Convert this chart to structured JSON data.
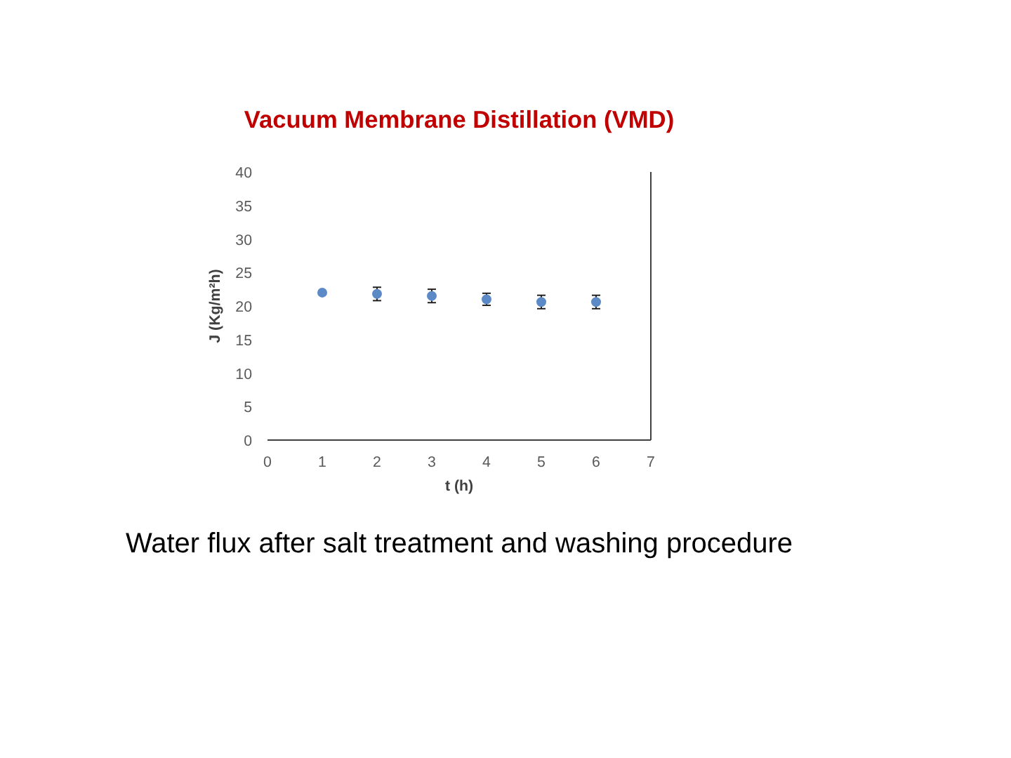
{
  "chart_data": {
    "type": "scatter",
    "title": "Vacuum Membrane Distillation (VMD)",
    "xlabel": "t (h)",
    "ylabel": "J (Kg/m²h)",
    "x": [
      1,
      2,
      3,
      4,
      5,
      6
    ],
    "series": [
      {
        "color": "#5b8ac6",
        "values": [
          22.0,
          21.8,
          21.5,
          21.0,
          20.6,
          20.6
        ],
        "errors": [
          null,
          1.0,
          1.0,
          0.9,
          1.0,
          1.0
        ]
      }
    ],
    "xlim": [
      0,
      7
    ],
    "xticks": [
      0,
      1,
      2,
      3,
      4,
      5,
      6,
      7
    ],
    "ylim": [
      0,
      40
    ],
    "yticks": [
      0,
      5,
      10,
      15,
      20,
      25,
      30,
      35,
      40
    ],
    "marker": "circle",
    "grid": false,
    "annotations": [
      "Water flux after salt treatment and washing procedure"
    ]
  }
}
